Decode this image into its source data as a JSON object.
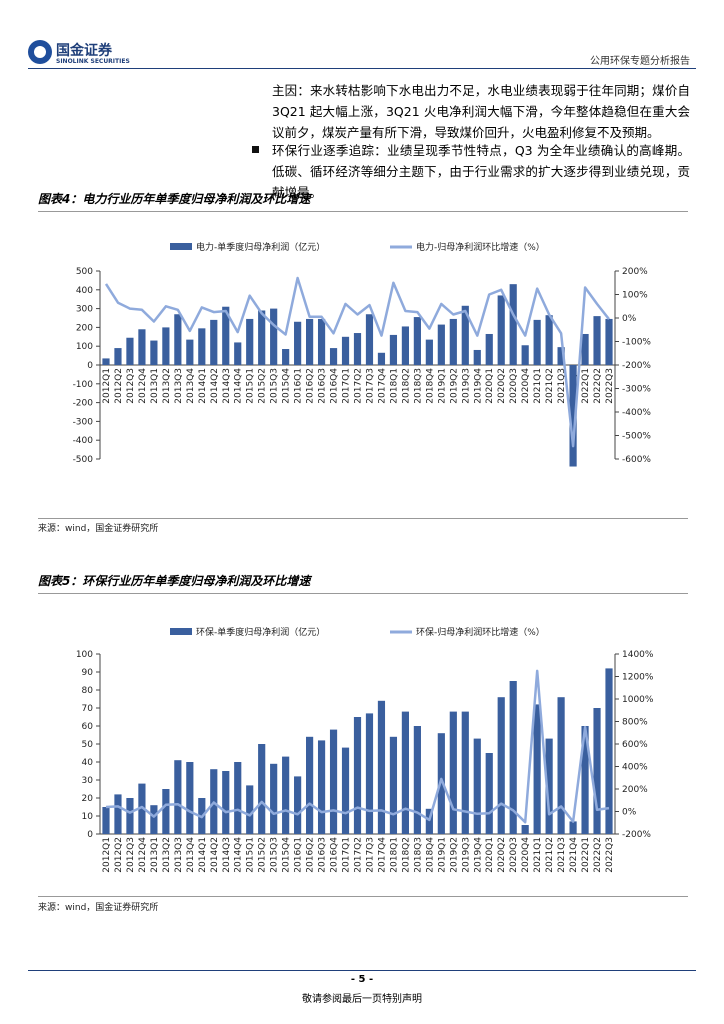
{
  "header": {
    "logo_cn": "国金证券",
    "logo_en": "SINOLINK SECURITIES",
    "report": "公用环保专题分析报告"
  },
  "body": {
    "para1": "主因：来水转枯影响下水电出力不足，水电业绩表现弱于往年同期；煤价自 3Q21 起大幅上涨，3Q21 火电净利润大幅下滑，今年整体趋稳但在重大会议前夕，煤炭产量有所下滑，导致煤价回升，火电盈利修复不及预期。",
    "bullet1": "环保行业逐季追踪：业绩呈现季节性特点，Q3 为全年业绩确认的高峰期。低碳、循环经济等细分主题下，由于行业需求的扩大逐步得到业绩兑现，贡献增量。"
  },
  "figures": [
    {
      "title": "图表4：电力行业历年单季度归母净利润及环比增速",
      "source": "来源：wind，国金证券研究所"
    },
    {
      "title": "图表5：环保行业历年单季度归母净利润及环比增速",
      "source": "来源：wind，国金证券研究所"
    }
  ],
  "chart_data": [
    {
      "type": "combo",
      "categories": [
        "2012Q1",
        "2012Q2",
        "2012Q3",
        "2012Q4",
        "2013Q1",
        "2013Q2",
        "2013Q3",
        "2013Q4",
        "2014Q1",
        "2014Q2",
        "2014Q3",
        "2014Q4",
        "2015Q1",
        "2015Q2",
        "2015Q3",
        "2015Q4",
        "2016Q1",
        "2016Q2",
        "2016Q3",
        "2016Q4",
        "2017Q1",
        "2017Q2",
        "2017Q3",
        "2017Q4",
        "2018Q1",
        "2018Q2",
        "2018Q3",
        "2018Q4",
        "2019Q1",
        "2019Q2",
        "2019Q3",
        "2019Q4",
        "2020Q1",
        "2020Q2",
        "2020Q3",
        "2020Q4",
        "2021Q1",
        "2021Q2",
        "2021Q3",
        "2021Q4",
        "2022Q1",
        "2022Q2",
        "2022Q3"
      ],
      "series": [
        {
          "name": "电力-单季度归母净利润（亿元）",
          "color": "#3a5f9e",
          "kind": "bar",
          "values": [
            35,
            90,
            145,
            190,
            130,
            200,
            270,
            135,
            195,
            240,
            310,
            120,
            245,
            290,
            300,
            85,
            230,
            245,
            245,
            90,
            150,
            170,
            270,
            65,
            160,
            205,
            255,
            135,
            215,
            245,
            315,
            80,
            165,
            370,
            430,
            105,
            240,
            265,
            95,
            -540,
            165,
            260,
            245
          ]
        },
        {
          "name": "电力-归母净利润环比增速（%）",
          "color": "#8faadc",
          "kind": "line",
          "axis": "y2",
          "values": [
            145,
            65,
            40,
            35,
            -15,
            50,
            35,
            -55,
            45,
            25,
            30,
            -60,
            95,
            20,
            -30,
            -70,
            170,
            5,
            5,
            -65,
            60,
            15,
            55,
            -75,
            150,
            30,
            25,
            -45,
            60,
            15,
            30,
            -75,
            100,
            120,
            15,
            -75,
            125,
            15,
            -65,
            -545,
            130,
            60,
            -5
          ]
        }
      ],
      "ylim": [
        -500,
        500
      ],
      "yticks": [
        -500,
        -400,
        -300,
        -200,
        -100,
        0,
        100,
        200,
        300,
        400,
        500
      ],
      "y2lim": [
        -600,
        200
      ],
      "y2ticks": [
        {
          "value": -600,
          "label": "-600%"
        },
        {
          "value": -500,
          "label": "-500%"
        },
        {
          "value": -400,
          "label": "-400%"
        },
        {
          "value": -300,
          "label": "-300%"
        },
        {
          "value": -200,
          "label": "-200%"
        },
        {
          "value": -100,
          "label": "-100%"
        },
        {
          "value": 0,
          "label": "0%"
        },
        {
          "value": 100,
          "label": "100%"
        },
        {
          "value": 200,
          "label": "200%"
        }
      ]
    },
    {
      "type": "combo",
      "categories": [
        "2012Q1",
        "2012Q2",
        "2012Q3",
        "2012Q4",
        "2013Q1",
        "2013Q2",
        "2013Q3",
        "2013Q4",
        "2014Q1",
        "2014Q2",
        "2014Q3",
        "2014Q4",
        "2015Q1",
        "2015Q2",
        "2015Q3",
        "2015Q4",
        "2016Q1",
        "2016Q2",
        "2016Q3",
        "2016Q4",
        "2017Q1",
        "2017Q2",
        "2017Q3",
        "2017Q4",
        "2018Q1",
        "2018Q2",
        "2018Q3",
        "2018Q4",
        "2019Q1",
        "2019Q2",
        "2019Q3",
        "2019Q4",
        "2020Q1",
        "2020Q2",
        "2020Q3",
        "2020Q4",
        "2021Q1",
        "2021Q2",
        "2021Q3",
        "2021Q4",
        "2022Q1",
        "2022Q2",
        "2022Q3"
      ],
      "series": [
        {
          "name": "环保-单季度归母净利润（亿元）",
          "color": "#3a5f9e",
          "kind": "bar",
          "values": [
            15,
            22,
            20,
            28,
            16,
            25,
            41,
            40,
            20,
            36,
            35,
            40,
            27,
            50,
            39,
            43,
            32,
            54,
            52,
            58,
            48,
            65,
            67,
            74,
            54,
            68,
            60,
            14,
            56,
            68,
            68,
            53,
            45,
            76,
            85,
            5,
            72,
            53,
            76,
            7,
            60,
            70,
            92
          ]
        },
        {
          "name": "环保-归母净利润环比增速（%）",
          "color": "#8faadc",
          "kind": "line",
          "axis": "y2",
          "values": [
            40,
            45,
            -10,
            40,
            -45,
            60,
            65,
            0,
            -50,
            80,
            -5,
            15,
            -35,
            85,
            -20,
            10,
            -25,
            70,
            -5,
            10,
            -15,
            35,
            5,
            10,
            -25,
            25,
            -10,
            -75,
            290,
            20,
            0,
            -20,
            -15,
            70,
            10,
            -95,
            1250,
            -25,
            45,
            -90,
            750,
            15,
            30
          ]
        }
      ],
      "ylim": [
        0,
        100
      ],
      "yticks": [
        0,
        10,
        20,
        30,
        40,
        50,
        60,
        70,
        80,
        90,
        100
      ],
      "y2lim": [
        -200,
        1400
      ],
      "y2ticks": [
        {
          "value": -200,
          "label": "-200%"
        },
        {
          "value": 0,
          "label": "0%"
        },
        {
          "value": 200,
          "label": "200%"
        },
        {
          "value": 400,
          "label": "400%"
        },
        {
          "value": 600,
          "label": "600%"
        },
        {
          "value": 800,
          "label": "800%"
        },
        {
          "value": 1000,
          "label": "1000%"
        },
        {
          "value": 1200,
          "label": "1200%"
        },
        {
          "value": 1400,
          "label": "1400%"
        }
      ]
    }
  ],
  "footer": {
    "page": "- 5 -",
    "notice": "敬请参阅最后一页特别声明"
  }
}
